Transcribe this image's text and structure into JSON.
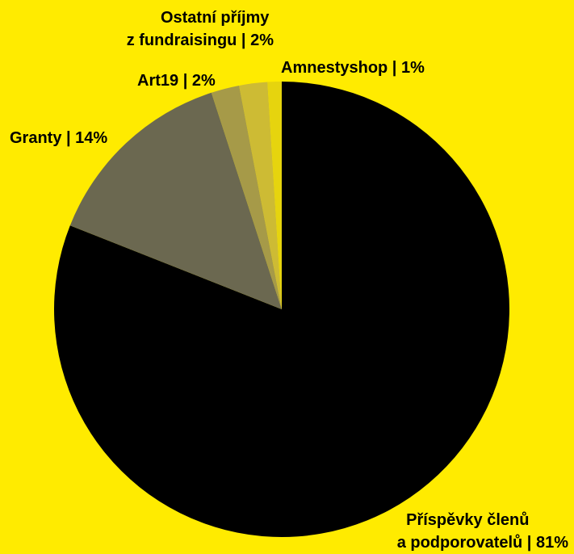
{
  "chart_data": {
    "type": "pie",
    "start_angle_deg": 0,
    "direction": "clockwise",
    "slices": [
      {
        "label_lines": [
          "Příspěvky členů",
          "a podporovatelů | 81%"
        ],
        "value": 81,
        "color": "#000000"
      },
      {
        "label_lines": [
          "Granty | 14%"
        ],
        "value": 14,
        "color": "#6B6850"
      },
      {
        "label_lines": [
          "Art19 | 2%"
        ],
        "value": 2,
        "color": "#A69A48"
      },
      {
        "label_lines": [
          "Ostatní příjmy",
          "z fundraisingu | 2%"
        ],
        "value": 2,
        "color": "#CDBB34"
      },
      {
        "label_lines": [
          "Amnestyshop | 1%"
        ],
        "value": 1,
        "color": "#E6D40E"
      }
    ]
  },
  "colors": {
    "background": "#FFEB00",
    "label_text": "#000000"
  }
}
